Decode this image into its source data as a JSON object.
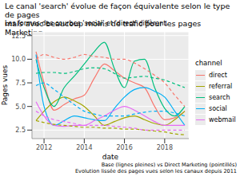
{
  "chart_data": {
    "type": "line",
    "title": "Le canal 'search' évolue de façon équivalente selon le type de pages\n mais avec beaucoup moins de trafic pour les pages Marketing",
    "subtitle": "Les formes des courbes 'social' et 'direct' diffèrent.",
    "caption": "Base (lignes pleines) vs Direct Marketing (pointillés)\nEvolution lissée des pages vues selon les canaux depuis 2011",
    "x_label": "date",
    "y_label": "Pages vues",
    "legend_title": "channel",
    "legend": "right",
    "grid": true,
    "xlim": [
      2011.4,
      2019.2
    ],
    "xticks": [
      2012,
      2014,
      2016,
      2018
    ],
    "ylim": [
      1.6,
      12.9
    ],
    "yticks": [
      2.5,
      {
        "value": 5,
        "label": "5.0"
      },
      7.5,
      {
        "value": 10,
        "label": "10.0"
      },
      12.5
    ],
    "x": [
      2011.6,
      2012,
      2012.5,
      2013,
      2013.5,
      2014,
      2014.5,
      2015,
      2015.5,
      2016,
      2016.5,
      2017,
      2017.5,
      2018,
      2018.5,
      2019
    ],
    "series": [
      {
        "name": "direct",
        "color": "#F8766D",
        "line_style": "solid",
        "values": [
          10.8,
          7.5,
          4.6,
          5.2,
          5.8,
          6.2,
          8.0,
          9.5,
          8.8,
          8.0,
          7.5,
          7.0,
          5.0,
          3.6,
          3.8,
          4.5
        ]
      },
      {
        "name": "referral",
        "color": "#A3A500",
        "line_style": "solid",
        "values": [
          3.5,
          4.5,
          5.5,
          6.0,
          5.6,
          5.0,
          4.0,
          3.0,
          3.4,
          3.8,
          4.0,
          3.6,
          3.2,
          3.0,
          3.6,
          4.5
        ]
      },
      {
        "name": "search",
        "color": "#00BF7D",
        "line_style": "solid",
        "values": [
          10.0,
          7.0,
          5.0,
          7.0,
          8.2,
          9.5,
          10.8,
          11.8,
          9.0,
          7.0,
          9.8,
          10.0,
          7.0,
          4.8,
          4.0,
          5.0
        ]
      },
      {
        "name": "social",
        "color": "#00B0F6",
        "line_style": "solid",
        "values": [
          10.5,
          5.0,
          3.0,
          3.5,
          4.0,
          3.8,
          3.6,
          3.5,
          4.8,
          6.0,
          6.8,
          7.0,
          6.6,
          6.0,
          4.5,
          3.0
        ]
      },
      {
        "name": "webmail",
        "color": "#E76BF3",
        "line_style": "solid",
        "values": [
          5.5,
          4.0,
          3.0,
          2.9,
          3.0,
          3.0,
          3.5,
          4.0,
          4.6,
          5.0,
          4.6,
          4.0,
          3.4,
          3.0,
          3.0,
          3.0
        ]
      },
      {
        "name": "direct",
        "color": "#F8766D",
        "line_style": "dashed",
        "values": [
          10.0,
          10.5,
          10.2,
          10.0,
          10.2,
          10.5,
          10.3,
          10.2,
          10.0,
          10.0,
          9.6,
          9.0,
          8.3,
          7.5,
          6.2,
          5.0
        ]
      },
      {
        "name": "referral",
        "color": "#A3A500",
        "line_style": "dashed",
        "values": [
          3.5,
          3.3,
          3.1,
          3.0,
          2.9,
          2.8,
          2.8,
          2.7,
          2.7,
          2.6,
          2.6,
          2.5,
          2.4,
          2.3,
          2.1,
          2.0
        ]
      },
      {
        "name": "search",
        "color": "#00BF7D",
        "line_style": "dashed",
        "values": [
          8.5,
          8.6,
          8.6,
          8.5,
          8.7,
          9.0,
          9.1,
          9.0,
          8.5,
          8.0,
          8.1,
          8.2,
          8.0,
          7.8,
          7.4,
          7.0
        ]
      },
      {
        "name": "social",
        "color": "#00B0F6",
        "line_style": "dashed",
        "values": [
          7.2,
          7.5,
          6.8,
          6.0,
          5.2,
          4.5,
          4.2,
          4.0,
          4.0,
          4.0,
          4.2,
          4.4,
          4.5,
          4.5,
          4.3,
          4.0
        ]
      },
      {
        "name": "webmail",
        "color": "#E76BF3",
        "line_style": "dashed",
        "values": [
          4.5,
          4.0,
          3.6,
          3.4,
          3.2,
          3.0,
          3.0,
          3.0,
          2.9,
          2.8,
          2.7,
          2.5,
          2.5,
          2.5,
          2.5,
          2.5
        ]
      }
    ]
  }
}
